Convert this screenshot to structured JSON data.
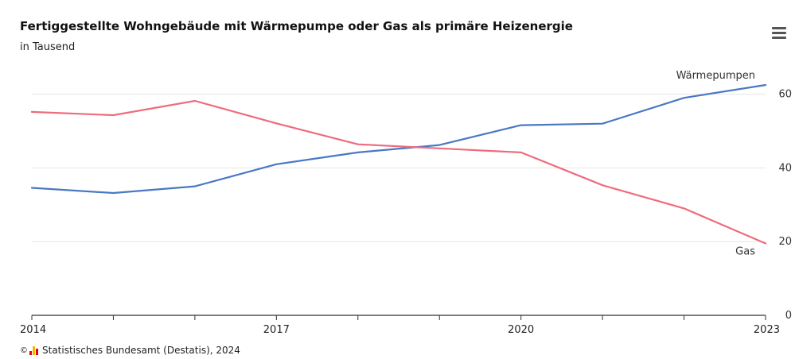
{
  "header": {
    "title": "Fertiggestellte Wohngebäude mit Wärmepumpe oder Gas als primäre Heizenergie",
    "subtitle": "in Tausend"
  },
  "menu": {
    "icon": "hamburger-menu-icon"
  },
  "footer": {
    "copyright_symbol": "©",
    "logo_icon": "destatis-logo-icon",
    "credit": "Statistisches Bundesamt (Destatis), 2024"
  },
  "colors": {
    "waermepumpen": "#4a78c2",
    "gas": "#ef6b7e",
    "grid": "#e6e6e6",
    "axis": "#333333"
  },
  "chart_data": {
    "type": "line",
    "title": "Fertiggestellte Wohngebäude mit Wärmepumpe oder Gas als primäre Heizenergie",
    "subtitle": "in Tausend",
    "x": [
      2014,
      2015,
      2016,
      2017,
      2018,
      2019,
      2020,
      2021,
      2022,
      2023
    ],
    "x_tick_labels": [
      "2014",
      "2017",
      "2020",
      "2023"
    ],
    "y_tick_labels": [
      "0",
      "20",
      "40",
      "60"
    ],
    "ylim": [
      0,
      65
    ],
    "y_axis_side": "right",
    "grid": true,
    "series": [
      {
        "name": "Wärmepumpen",
        "color": "#4a78c2",
        "values": [
          34.6,
          33.2,
          35.0,
          41.0,
          44.2,
          46.2,
          51.6,
          52.0,
          59.0,
          62.5
        ]
      },
      {
        "name": "Gas",
        "color": "#ef6b7e",
        "values": [
          55.2,
          54.3,
          58.2,
          52.1,
          46.4,
          45.3,
          44.2,
          35.3,
          29.0,
          19.5
        ]
      }
    ]
  }
}
